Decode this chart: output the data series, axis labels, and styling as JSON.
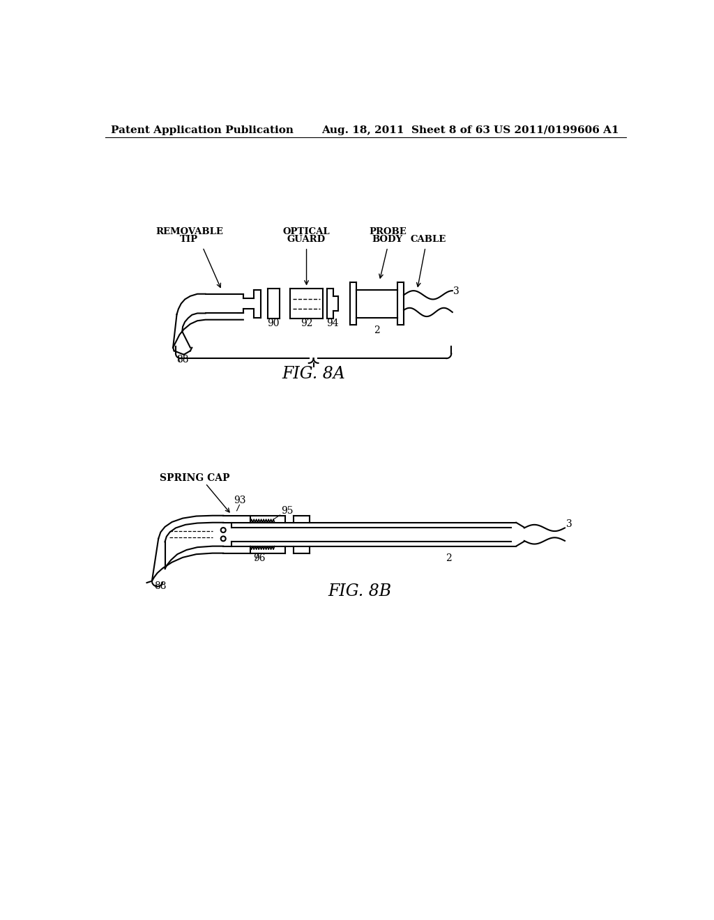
{
  "background_color": "#ffffff",
  "header_left": "Patent Application Publication",
  "header_center": "Aug. 18, 2011  Sheet 8 of 63",
  "header_right": "US 2011/0199606 A1",
  "header_fontsize": 11,
  "line_color": "#000000",
  "line_width": 1.5,
  "text_color": "#000000"
}
